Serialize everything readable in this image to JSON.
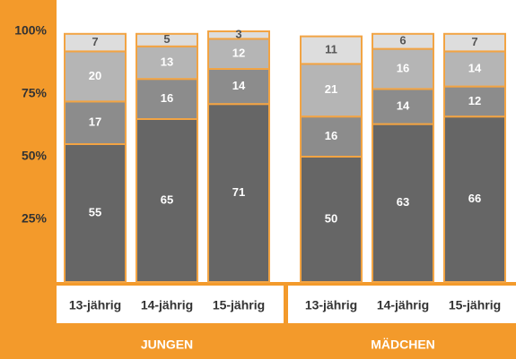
{
  "chart_data": {
    "type": "stacked-bar",
    "groups": [
      {
        "label": "JUNGEN",
        "categories": [
          "13-jährig",
          "14-jährig",
          "15-jährig"
        ]
      },
      {
        "label": "MÄDCHEN",
        "categories": [
          "13-jährig",
          "14-jährig",
          "15-jährig"
        ]
      }
    ],
    "series": [
      {
        "color": "#666666",
        "label_color": "#ffffff",
        "values": [
          55,
          65,
          71,
          50,
          63,
          66
        ]
      },
      {
        "color": "#8c8c8c",
        "label_color": "#ffffff",
        "values": [
          17,
          16,
          14,
          16,
          14,
          12
        ]
      },
      {
        "color": "#b5b5b5",
        "label_color": "#ffffff",
        "values": [
          20,
          13,
          12,
          21,
          16,
          14
        ]
      },
      {
        "color": "#dddddd",
        "label_color": "#555555",
        "values": [
          7,
          5,
          3,
          11,
          6,
          7
        ]
      }
    ],
    "ylim": [
      0,
      100
    ],
    "yticks": [
      {
        "value": 25,
        "label": "25%"
      },
      {
        "value": 50,
        "label": "50%"
      },
      {
        "value": 75,
        "label": "75%"
      },
      {
        "value": 100,
        "label": "100%"
      }
    ],
    "bar_border": "#f2a444"
  }
}
